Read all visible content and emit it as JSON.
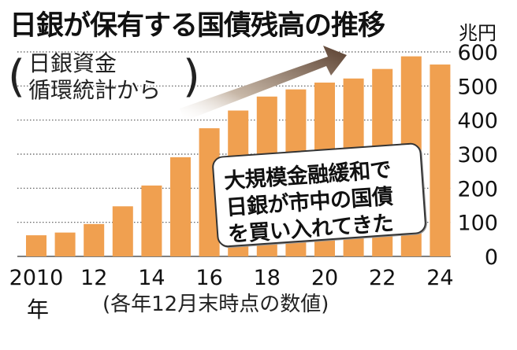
{
  "header": {
    "title": "日銀が保有する国債残高の推移",
    "source_line1": "日銀資金",
    "source_line2": "循環統計から",
    "paren_left": "(",
    "paren_right": ")",
    "unit": "兆円"
  },
  "note": {
    "line1": "大規模金融緩和で",
    "line2": "日銀が市中の国債",
    "line3": "を買い入れてきた"
  },
  "footer": {
    "year_suffix": "年",
    "caption": "(各年12月末時点の数値)"
  },
  "colors": {
    "bar": "#f0a050",
    "arrow_dark": "#5a4030",
    "arrow_light": "#ffffff",
    "grid": "#555555"
  },
  "chart_data": {
    "type": "bar",
    "title": "日銀が保有する国債残高の推移",
    "ylabel": "兆円",
    "x": [
      2010,
      2011,
      2012,
      2013,
      2014,
      2015,
      2016,
      2017,
      2018,
      2019,
      2020,
      2021,
      2022,
      2023,
      2024
    ],
    "x_tick_labels": [
      "2010",
      "12",
      "14",
      "16",
      "18",
      "20",
      "22",
      "24"
    ],
    "x_tick_years": [
      2010,
      2012,
      2014,
      2016,
      2018,
      2020,
      2022,
      2024
    ],
    "values": [
      62,
      70,
      95,
      147,
      208,
      291,
      376,
      428,
      469,
      490,
      510,
      522,
      550,
      587,
      563
    ],
    "y_ticks": [
      0,
      100,
      200,
      300,
      400,
      500,
      600
    ],
    "ylim": [
      0,
      600
    ],
    "grid": true,
    "grid_style": "dotted"
  }
}
